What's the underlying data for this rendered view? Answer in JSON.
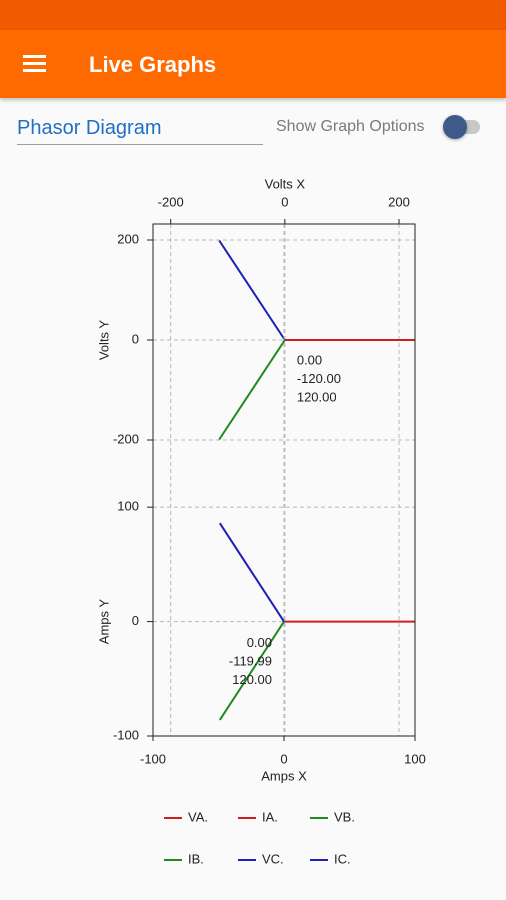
{
  "app_bar": {
    "title": "Live Graphs"
  },
  "controls": {
    "input_value": "Phasor Diagram",
    "toggle_label": "Show Graph Options",
    "toggle_on": false
  },
  "chart_data": [
    {
      "type": "line",
      "x_label": "Volts X",
      "y_label": "Volts Y",
      "x_axis_position": "top",
      "xlim": [
        -231,
        228
      ],
      "xticks": [
        -200,
        0,
        200
      ],
      "ylim": [
        -300,
        232
      ],
      "yticks": [
        200,
        0,
        -200
      ],
      "grid": true,
      "series": [
        {
          "name": "VA.",
          "color": "#cc1f1f",
          "x": [
            0,
            230
          ],
          "values": [
            0,
            0
          ]
        },
        {
          "name": "VB.",
          "color": "#1e8a1e",
          "x": [
            0,
            -115
          ],
          "values": [
            0,
            -199
          ]
        },
        {
          "name": "VC.",
          "color": "#1f1fb4",
          "x": [
            0,
            -115
          ],
          "values": [
            0,
            199
          ]
        }
      ],
      "annotations": [
        {
          "text": "0.00",
          "color": "#cc1f1f"
        },
        {
          "text": "-120.00",
          "color": "#1e8a1e"
        },
        {
          "text": "120.00",
          "color": "#1f1fb4"
        }
      ]
    },
    {
      "type": "line",
      "x_label": "Amps X",
      "y_label": "Amps Y",
      "x_axis_position": "bottom",
      "xlim": [
        -100,
        100
      ],
      "xticks": [
        -100,
        0,
        100
      ],
      "ylim": [
        -100,
        115
      ],
      "yticks": [
        100,
        0,
        -100
      ],
      "grid": true,
      "series": [
        {
          "name": "IA.",
          "color": "#cc1f1f",
          "x": [
            0,
            100
          ],
          "values": [
            0,
            0
          ]
        },
        {
          "name": "IB.",
          "color": "#1e8a1e",
          "x": [
            0,
            -49
          ],
          "values": [
            0,
            -86
          ]
        },
        {
          "name": "IC.",
          "color": "#1f1fb4",
          "x": [
            0,
            -49
          ],
          "values": [
            0,
            86
          ]
        }
      ],
      "annotations": [
        {
          "text": "0.00",
          "color": "#cc1f1f"
        },
        {
          "text": "-119.99",
          "color": "#1e8a1e"
        },
        {
          "text": "120.00",
          "color": "#1f1fb4"
        }
      ]
    }
  ]
}
